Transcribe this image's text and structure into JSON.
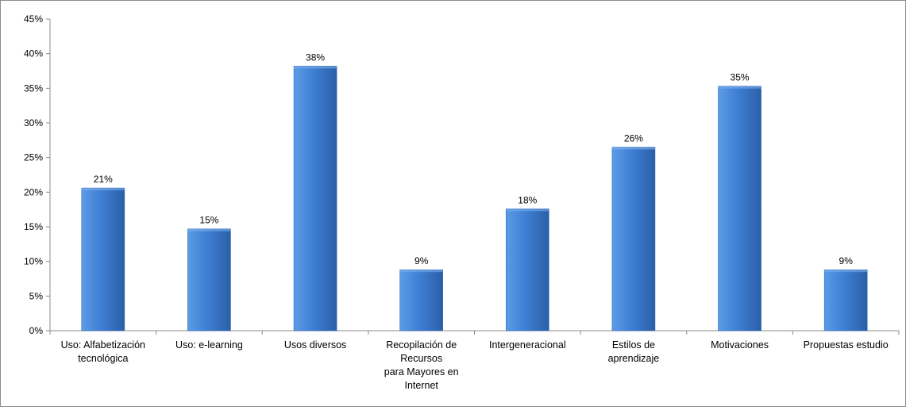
{
  "chart_data": {
    "type": "bar",
    "categories": [
      [
        "Uso: Alfabetización",
        "tecnológica"
      ],
      [
        "Uso: e-learning"
      ],
      [
        "Usos diversos"
      ],
      [
        "Recopilación de",
        "Recursos",
        "para Mayores en",
        "Internet"
      ],
      [
        "Intergeneracional"
      ],
      [
        "Estilos de",
        "aprendizaje"
      ],
      [
        "Motivaciones"
      ],
      [
        "Propuestas estudio"
      ]
    ],
    "values": [
      20.6,
      14.7,
      38.2,
      8.8,
      17.6,
      26.5,
      35.3,
      8.8
    ],
    "data_labels": [
      "21%",
      "15%",
      "38%",
      "9%",
      "18%",
      "26%",
      "35%",
      "9%"
    ],
    "ylim": [
      0,
      45
    ],
    "yticks": [
      0,
      5,
      10,
      15,
      20,
      25,
      30,
      35,
      40,
      45
    ],
    "ytick_labels": [
      "0%",
      "5%",
      "10%",
      "15%",
      "20%",
      "25%",
      "30%",
      "35%",
      "40%",
      "45%"
    ],
    "title": "",
    "xlabel": "",
    "ylabel": "",
    "grid": false,
    "legend": "none",
    "colors": {
      "bar_light": "#5b9be6",
      "bar_mid": "#3f7fd3",
      "bar_dark": "#2a5fa8",
      "axis": "#8c8c8c"
    }
  }
}
